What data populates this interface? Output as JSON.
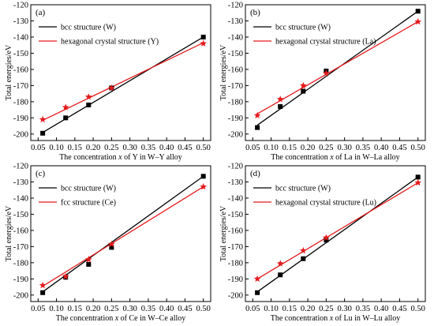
{
  "figure": {
    "colors": {
      "bcc": "#000000",
      "other": "#e41a1c"
    }
  },
  "chart_data": [
    {
      "type": "line",
      "panel_label": "(a)",
      "ylabel": "Total energies/eV",
      "xlabel_parts": [
        "The concentration ",
        "x",
        " of Y in W–Y alloy"
      ],
      "xlim": [
        0.03,
        0.52
      ],
      "ylim": [
        -204,
        -120
      ],
      "xticks": [
        0.05,
        0.1,
        0.15,
        0.2,
        0.25,
        0.3,
        0.35,
        0.4,
        0.45,
        0.5
      ],
      "xtick_labels": [
        "0.05",
        "0.10",
        "0.15",
        "0.20",
        "0.25",
        "0.30",
        "0.35",
        "0.40",
        "0.45",
        "0.50"
      ],
      "yticks": [
        -200,
        -190,
        -180,
        -170,
        -160,
        -150,
        -140,
        -130,
        -120
      ],
      "ytick_labels": [
        "-200",
        "-190",
        "-180",
        "-170",
        "-160",
        "-150",
        "-140",
        "-130",
        "-120"
      ],
      "legend_position": "top-left",
      "series": [
        {
          "name": "bcc structure (W)",
          "marker": "square",
          "color": "#000000",
          "x": [
            0.0625,
            0.125,
            0.1875,
            0.25,
            0.5
          ],
          "y": [
            -199.5,
            -190.0,
            -182.0,
            -171.5,
            -140.0
          ],
          "fit": [
            [
              0.0625,
              -199.0
            ],
            [
              0.5,
              -140.0
            ]
          ]
        },
        {
          "name": "hexagonal crystal structure (Y)",
          "marker": "star",
          "color": "#e41a1c",
          "x": [
            0.0625,
            0.125,
            0.1875,
            0.25,
            0.5
          ],
          "y": [
            -191.0,
            -183.5,
            -177.0,
            -171.5,
            -144.0
          ],
          "fit": [
            [
              0.0625,
              -191.5
            ],
            [
              0.5,
              -143.5
            ]
          ]
        }
      ]
    },
    {
      "type": "line",
      "panel_label": "(b)",
      "ylabel": "Total energies/eV",
      "xlabel_parts": [
        "The concentration ",
        "x",
        " of La in W–La alloy"
      ],
      "xlim": [
        0.03,
        0.52
      ],
      "ylim": [
        -204,
        -120
      ],
      "xticks": [
        0.05,
        0.1,
        0.15,
        0.2,
        0.25,
        0.3,
        0.35,
        0.4,
        0.45,
        0.5
      ],
      "xtick_labels": [
        "0.05",
        "0.10",
        "0.15",
        "0.20",
        "0.25",
        "0.30",
        "0.35",
        "0.40",
        "0.45",
        "0.50"
      ],
      "yticks": [
        -200,
        -190,
        -180,
        -170,
        -160,
        -150,
        -140,
        -130,
        -120
      ],
      "ytick_labels": [
        "-200",
        "-190",
        "-180",
        "-170",
        "-160",
        "-150",
        "-140",
        "-130",
        "-120"
      ],
      "legend_position": "top-left",
      "series": [
        {
          "name": "bcc structure (W)",
          "marker": "square",
          "color": "#000000",
          "x": [
            0.0625,
            0.125,
            0.1875,
            0.25,
            0.5
          ],
          "y": [
            -196.0,
            -183.0,
            -173.5,
            -161.0,
            -124.0
          ],
          "fit": [
            [
              0.0625,
              -194.5
            ],
            [
              0.5,
              -124.0
            ]
          ]
        },
        {
          "name": "hexagonal crystal structure (La)",
          "marker": "star",
          "color": "#e41a1c",
          "x": [
            0.0625,
            0.125,
            0.1875,
            0.25,
            0.5
          ],
          "y": [
            -188.5,
            -178.5,
            -170.0,
            -162.5,
            -130.5
          ],
          "fit": [
            [
              0.0625,
              -187.5
            ],
            [
              0.5,
              -130.5
            ]
          ]
        }
      ]
    },
    {
      "type": "line",
      "panel_label": "(c)",
      "ylabel": "Total energies/eV",
      "xlabel_parts": [
        "The concentration ",
        "x",
        " of Ce in W–Ce alloy"
      ],
      "xlim": [
        0.03,
        0.52
      ],
      "ylim": [
        -204,
        -120
      ],
      "xticks": [
        0.05,
        0.1,
        0.15,
        0.2,
        0.25,
        0.3,
        0.35,
        0.4,
        0.45,
        0.5
      ],
      "xtick_labels": [
        "0.05",
        "0.10",
        "0.15",
        "0.20",
        "0.25",
        "0.30",
        "0.35",
        "0.40",
        "0.45",
        "0.50"
      ],
      "yticks": [
        -200,
        -190,
        -180,
        -170,
        -160,
        -150,
        -140,
        -130,
        -120
      ],
      "ytick_labels": [
        "-200",
        "-190",
        "-180",
        "-170",
        "-160",
        "-150",
        "-140",
        "-130",
        "-120"
      ],
      "legend_position": "top-left",
      "series": [
        {
          "name": "bcc structure (W)",
          "marker": "square",
          "color": "#000000",
          "x": [
            0.0625,
            0.125,
            0.1875,
            0.25,
            0.5
          ],
          "y": [
            -198.5,
            -189.0,
            -181.0,
            -170.5,
            -126.5
          ],
          "fit": [
            [
              0.0625,
              -198.0
            ],
            [
              0.5,
              -126.5
            ]
          ]
        },
        {
          "name": "fcc structure (Ce)",
          "marker": "star",
          "color": "#e41a1c",
          "x": [
            0.0625,
            0.125,
            0.1875,
            0.25,
            0.5
          ],
          "y": [
            -194.0,
            -188.5,
            -178.0,
            -168.5,
            -133.0
          ],
          "fit": [
            [
              0.0625,
              -194.5
            ],
            [
              0.5,
              -133.0
            ]
          ]
        }
      ]
    },
    {
      "type": "line",
      "panel_label": "(d)",
      "ylabel": "Total energies/eV",
      "xlabel_parts": [
        "The concentration ",
        "x",
        " of Lu in W–Lu alloy"
      ],
      "xlim": [
        0.03,
        0.52
      ],
      "ylim": [
        -204,
        -120
      ],
      "xticks": [
        0.05,
        0.1,
        0.15,
        0.2,
        0.25,
        0.3,
        0.35,
        0.4,
        0.45,
        0.5
      ],
      "xtick_labels": [
        "0.05",
        "0.10",
        "0.15",
        "0.20",
        "0.25",
        "0.30",
        "0.35",
        "0.40",
        "0.45",
        "0.50"
      ],
      "yticks": [
        -200,
        -190,
        -180,
        -170,
        -160,
        -150,
        -140,
        -130,
        -120
      ],
      "ytick_labels": [
        "-200",
        "-190",
        "-180",
        "-170",
        "-160",
        "-150",
        "-140",
        "-130",
        "-120"
      ],
      "legend_position": "top-left",
      "series": [
        {
          "name": "bcc structure (W)",
          "marker": "square",
          "color": "#000000",
          "x": [
            0.0625,
            0.125,
            0.1875,
            0.25,
            0.5
          ],
          "y": [
            -198.5,
            -187.5,
            -177.5,
            -166.0,
            -127.0
          ],
          "fit": [
            [
              0.0625,
              -198.0
            ],
            [
              0.5,
              -127.0
            ]
          ]
        },
        {
          "name": "hexagonal crystal structure (Lu)",
          "marker": "star",
          "color": "#e41a1c",
          "x": [
            0.0625,
            0.125,
            0.1875,
            0.25,
            0.5
          ],
          "y": [
            -190.0,
            -180.5,
            -172.5,
            -164.5,
            -130.5
          ],
          "fit": [
            [
              0.0625,
              -190.0
            ],
            [
              0.5,
              -130.5
            ]
          ]
        }
      ]
    }
  ]
}
